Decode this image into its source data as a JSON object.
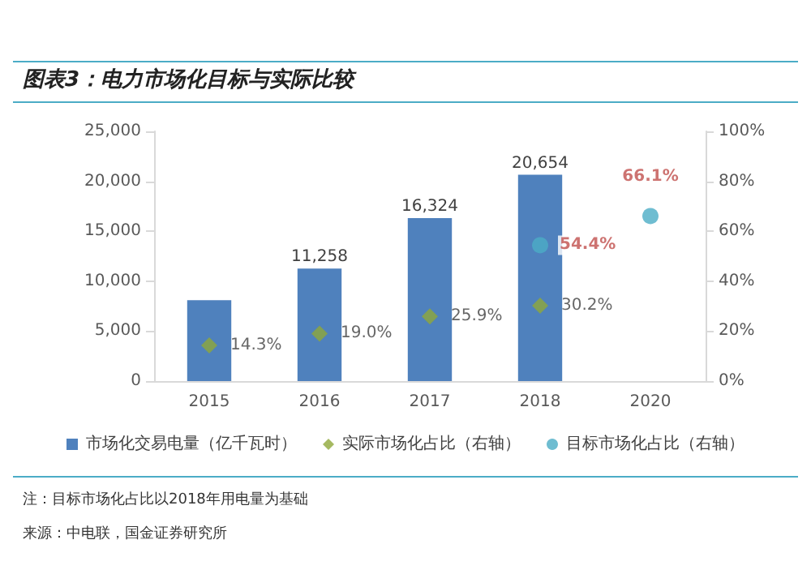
{
  "chart_data": {
    "type": "bar",
    "title": "图表3：电力市场化目标与实际比较",
    "categories": [
      "2015",
      "2016",
      "2017",
      "2018",
      "2020"
    ],
    "series": [
      {
        "name": "市场化交易电量（亿千瓦时）",
        "color": "#4f81bd",
        "values": [
          8100,
          11258,
          16324,
          20654,
          null
        ],
        "value_labels": [
          null,
          "11,258",
          "16,324",
          "20,654",
          null
        ]
      },
      {
        "name": "实际市场化占比（右轴）",
        "type": "scatter",
        "axis": "y2",
        "marker": "diamond",
        "color": "#8fa83a",
        "values": [
          14.3,
          19.0,
          25.9,
          30.2,
          null
        ],
        "value_labels": [
          "14.3%",
          "19.0%",
          "25.9%",
          "30.2%",
          null
        ]
      },
      {
        "name": "目标市场化占比（右轴）",
        "type": "scatter",
        "axis": "y2",
        "marker": "circle",
        "color": "#4bacc6",
        "values": [
          null,
          null,
          null,
          54.4,
          66.1
        ],
        "value_labels": [
          null,
          null,
          null,
          "54.4%",
          "66.1%"
        ]
      }
    ],
    "ylim": [
      0,
      25000
    ],
    "yticks": [
      {
        "value": 0,
        "label": "0"
      },
      {
        "value": 5000,
        "label": "5,000"
      },
      {
        "value": 10000,
        "label": "10,000"
      },
      {
        "value": 15000,
        "label": "15,000"
      },
      {
        "value": 20000,
        "label": "20,000"
      },
      {
        "value": 25000,
        "label": "25,000"
      }
    ],
    "y2lim": [
      0,
      100
    ],
    "y2ticks": [
      {
        "value": 0,
        "label": "0%"
      },
      {
        "value": 20,
        "label": "20%"
      },
      {
        "value": 40,
        "label": "40%"
      },
      {
        "value": 60,
        "label": "60%"
      },
      {
        "value": 80,
        "label": "80%"
      },
      {
        "value": 100,
        "label": "100%"
      }
    ],
    "grid": false,
    "legend": "bottom",
    "annotations": [
      "注：目标市场化占比以2018年用电量为基础",
      "来源：中电联，国金证券研究所"
    ]
  }
}
